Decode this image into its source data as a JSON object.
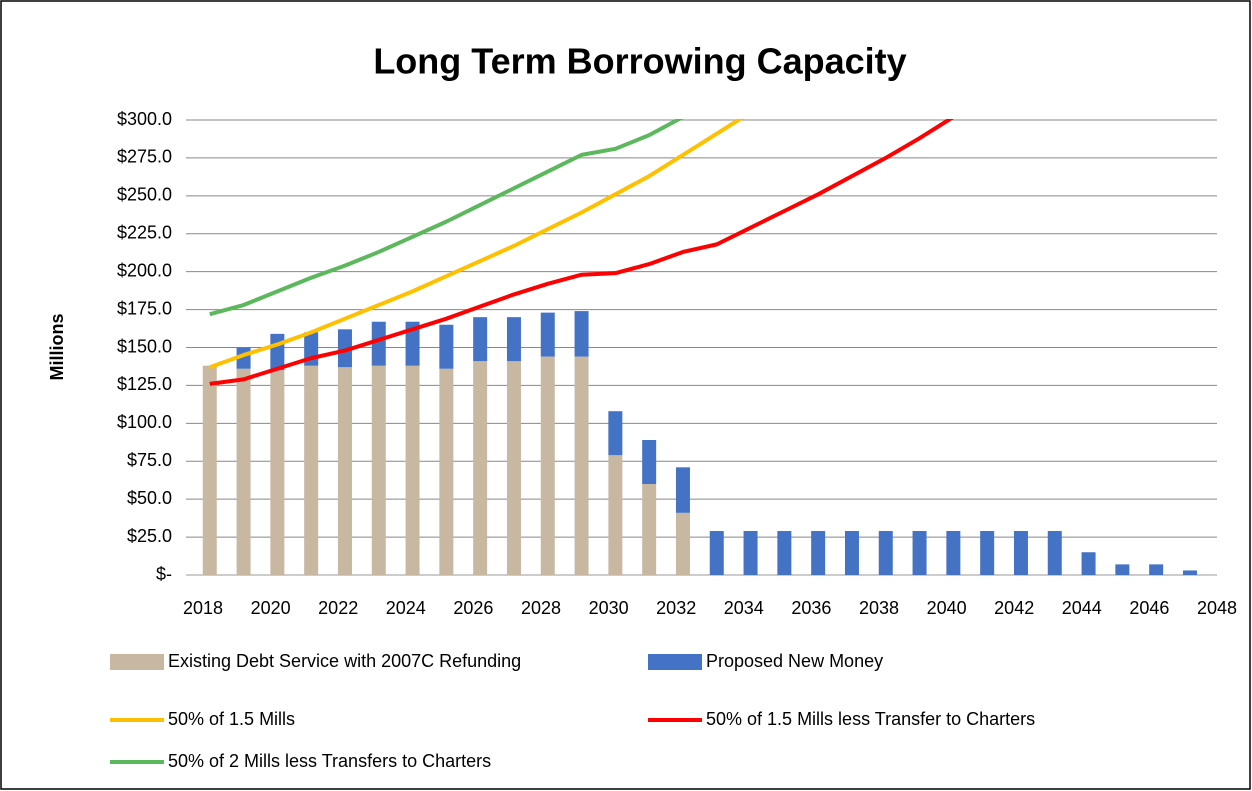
{
  "chart_data": {
    "type": "bar_line",
    "title": "Long Term Borrowing Capacity",
    "ylabel": "Millions",
    "x": [
      2018.2,
      2019.2,
      2020.2,
      2021.2,
      2022.2,
      2023.2,
      2024.2,
      2025.2,
      2026.2,
      2027.2,
      2028.2,
      2029.2,
      2030.2,
      2031.2,
      2032.2,
      2033.2,
      2034.2,
      2035.2,
      2036.2,
      2037.2,
      2038.2,
      2039.2,
      2040.2,
      2041.2,
      2042.2,
      2043.2,
      2044.2,
      2045.2,
      2046.2,
      2047.2
    ],
    "xlim": [
      2018,
      2048
    ],
    "xticks": [
      2018,
      2020,
      2022,
      2024,
      2026,
      2028,
      2030,
      2032,
      2034,
      2036,
      2038,
      2040,
      2042,
      2044,
      2046,
      2048
    ],
    "ylim": [
      0,
      300
    ],
    "yticks": [
      {
        "value": 0,
        "label": "$-"
      },
      {
        "value": 25,
        "label": "$25.0"
      },
      {
        "value": 50,
        "label": "$50.0"
      },
      {
        "value": 75,
        "label": "$75.0"
      },
      {
        "value": 100,
        "label": "$100.0"
      },
      {
        "value": 125,
        "label": "$125.0"
      },
      {
        "value": 150,
        "label": "$150.0"
      },
      {
        "value": 175,
        "label": "$175.0"
      },
      {
        "value": 200,
        "label": "$200.0"
      },
      {
        "value": 225,
        "label": "$225.0"
      },
      {
        "value": 250,
        "label": "$250.0"
      },
      {
        "value": 275,
        "label": "$275.0"
      },
      {
        "value": 300,
        "label": "$300.0"
      }
    ],
    "grid": true,
    "series": [
      {
        "name": "Existing Debt Service with 2007C Refunding",
        "kind": "bar",
        "color": "#c8b8a2",
        "values": [
          138,
          136,
          135,
          138,
          137,
          138,
          138,
          136,
          141,
          141,
          144,
          144,
          79,
          60,
          41,
          0,
          0,
          0,
          0,
          0,
          0,
          0,
          0,
          0,
          0,
          0,
          0,
          0,
          0,
          0
        ]
      },
      {
        "name": "Proposed New Money",
        "kind": "bar",
        "color": "#4472c4",
        "values": [
          0,
          14,
          24,
          22,
          25,
          29,
          29,
          29,
          29,
          29,
          29,
          30,
          29,
          29,
          30,
          29,
          29,
          29,
          29,
          29,
          29,
          29,
          29,
          29,
          29,
          29,
          15,
          7,
          7,
          3
        ]
      },
      {
        "name": "50% of 1.5 Mills",
        "kind": "line",
        "color": "#ffc000",
        "values": [
          137,
          145,
          152,
          160,
          169,
          178,
          187,
          197,
          207,
          217,
          228,
          239,
          251,
          263,
          277,
          291,
          305,
          null,
          null,
          null,
          null,
          null,
          null,
          null,
          null,
          null,
          null,
          null,
          null,
          null
        ]
      },
      {
        "name": "50% of 1.5 Mills less Transfer to Charters",
        "kind": "line",
        "color": "#ff0000",
        "values": [
          126,
          129,
          136,
          143,
          148,
          155,
          162,
          169,
          177,
          185,
          192,
          198,
          199,
          205,
          213,
          218,
          229,
          240,
          251,
          263,
          275,
          288,
          302,
          null,
          null,
          null,
          null,
          null,
          null,
          null
        ]
      },
      {
        "name": "50% of 2 Mills less Transfers to Charters",
        "kind": "line",
        "color": "#5cb85c",
        "values": [
          172,
          178,
          187,
          196,
          204,
          213,
          223,
          233,
          244,
          255,
          266,
          277,
          281,
          290,
          302,
          null,
          null,
          null,
          null,
          null,
          null,
          null,
          null,
          null,
          null,
          null,
          null,
          null,
          null,
          null
        ]
      }
    ]
  }
}
